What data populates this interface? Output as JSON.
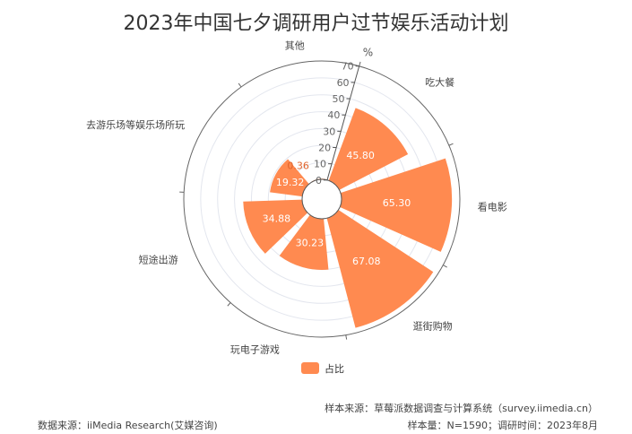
{
  "chart_data": {
    "type": "polar-bar",
    "title": "2023年中国七夕调研用户过节娱乐活动计划",
    "categories": [
      "吃大餐",
      "看电影",
      "逛街购物",
      "玩电子游戏",
      "短途出游",
      "去游乐场等娱乐场所玩",
      "其他"
    ],
    "series": [
      {
        "name": "占比",
        "values": [
          45.8,
          65.3,
          67.08,
          30.23,
          34.88,
          19.32,
          0.36
        ]
      }
    ],
    "radial_axis": {
      "label": "%",
      "range": [
        0,
        70
      ],
      "ticks": [
        "0",
        "10",
        "20",
        "30",
        "40",
        "50",
        "60",
        "70"
      ]
    },
    "legend": "bottom-center",
    "color": "#FF8A50",
    "grid": true
  },
  "footer": {
    "sample_source": "样本来源：草莓派数据调查与计算系统（survey.iimedia.cn）",
    "data_source": "数据来源：iiMedia Research(艾媒咨询)",
    "sample_info": "样本量：N=1590；调研时间：2023年8月"
  }
}
